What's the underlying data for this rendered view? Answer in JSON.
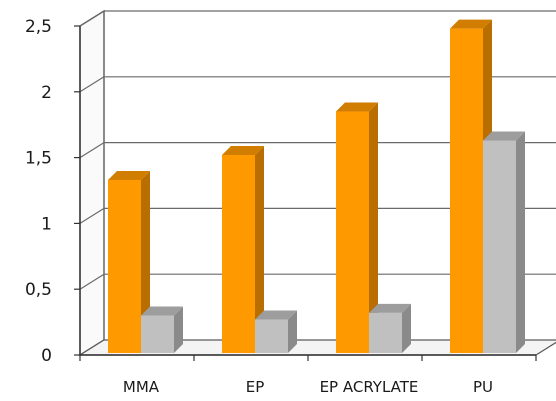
{
  "chart_data": {
    "type": "bar",
    "categories": [
      "MMA",
      "EP",
      "EP ACRYLATE",
      "PU"
    ],
    "series": [
      {
        "values": [
          1.33,
          1.52,
          1.85,
          2.48
        ],
        "color": "#ff9900"
      },
      {
        "values": [
          0.3,
          0.27,
          0.32,
          1.63
        ],
        "color": "#c0c0c0"
      }
    ],
    "ylim": [
      0,
      2.5
    ],
    "y_ticks": [
      "0",
      "0,5",
      "1",
      "1,5",
      "2",
      "2,5"
    ],
    "grid": true,
    "style": "3d-column"
  }
}
